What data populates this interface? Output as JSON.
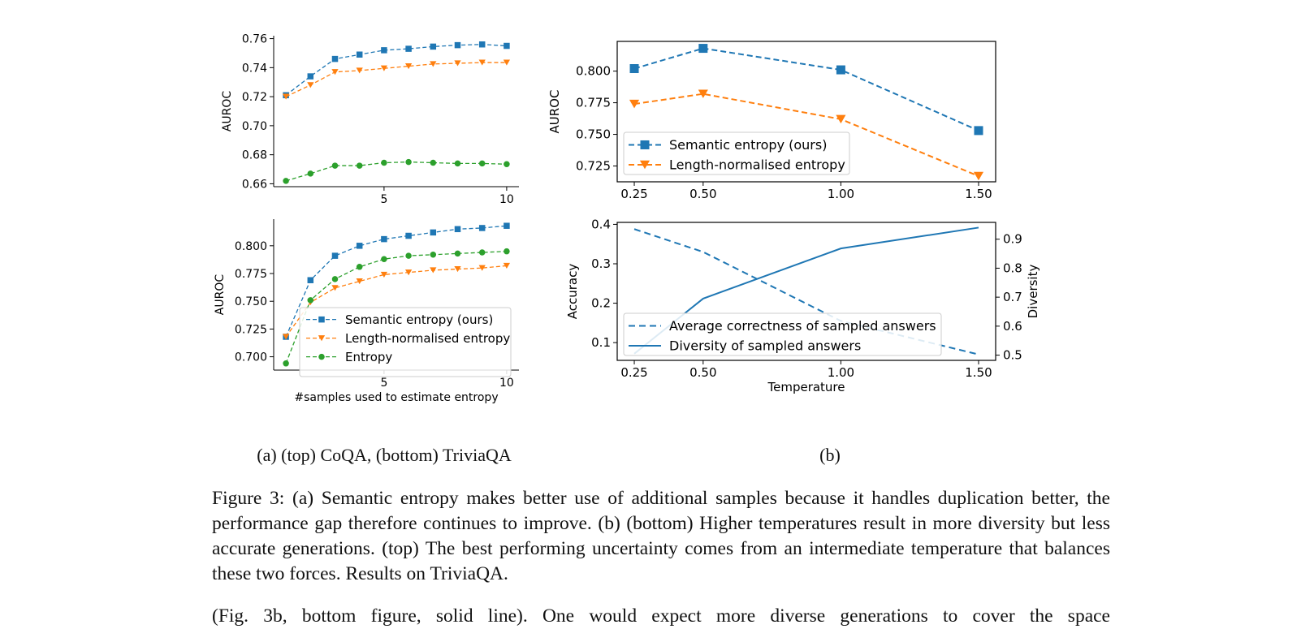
{
  "colors": {
    "blue": "#1f77b4",
    "orange": "#ff7f0e",
    "green": "#2ca02c"
  },
  "sublabels": {
    "a": "(a) (top) CoQA, (bottom) TriviaQA",
    "b": "(b)"
  },
  "caption": "Figure 3: (a) Semantic entropy makes better use of additional samples because it handles duplication better, the performance gap therefore continues to improve. (b) (bottom) Higher temperatures result in more diversity but less accurate generations. (top) The best performing uncertainty comes from an intermediate temperature that balances these two forces. Results on TriviaQA.",
  "body_text": "(Fig. 3b, bottom figure, solid line). One would expect more diverse generations to cover the space",
  "chart_data": [
    {
      "id": "a-top",
      "type": "line",
      "title": "",
      "xlabel": "",
      "ylabel": "AUROC",
      "xlim": [
        0.5,
        10.5
      ],
      "ylim": [
        0.658,
        0.762
      ],
      "xticks": [
        5,
        10
      ],
      "xtick_labels": [
        "5",
        "10"
      ],
      "yticks": [
        0.66,
        0.68,
        0.7,
        0.72,
        0.74,
        0.76
      ],
      "ytick_labels": [
        "0.66",
        "0.68",
        "0.70",
        "0.72",
        "0.74",
        "0.76"
      ],
      "grid": false,
      "legend": null,
      "x": [
        1,
        2,
        3,
        4,
        5,
        6,
        7,
        8,
        9,
        10
      ],
      "series": [
        {
          "name": "Semantic entropy (ours)",
          "color": "#1f77b4",
          "marker": "square",
          "dash": "dashed",
          "values": [
            0.721,
            0.734,
            0.746,
            0.749,
            0.752,
            0.753,
            0.7545,
            0.7555,
            0.756,
            0.755
          ]
        },
        {
          "name": "Length-normalised entropy",
          "color": "#ff7f0e",
          "marker": "triangle-down",
          "dash": "dashed",
          "values": [
            0.72,
            0.728,
            0.737,
            0.738,
            0.7395,
            0.741,
            0.7425,
            0.743,
            0.7435,
            0.7435
          ]
        },
        {
          "name": "Entropy",
          "color": "#2ca02c",
          "marker": "circle",
          "dash": "dashed",
          "values": [
            0.662,
            0.667,
            0.6725,
            0.6725,
            0.6745,
            0.675,
            0.6745,
            0.674,
            0.674,
            0.6735
          ]
        }
      ]
    },
    {
      "id": "a-bottom",
      "type": "line",
      "title": "",
      "xlabel": "#samples used to estimate entropy",
      "ylabel": "AUROC",
      "xlim": [
        0.5,
        10.5
      ],
      "ylim": [
        0.688,
        0.824
      ],
      "xticks": [
        5,
        10
      ],
      "xtick_labels": [
        "5",
        "10"
      ],
      "yticks": [
        0.7,
        0.725,
        0.75,
        0.775,
        0.8
      ],
      "ytick_labels": [
        "0.700",
        "0.725",
        "0.750",
        "0.775",
        "0.800"
      ],
      "grid": false,
      "legend": "lower-right",
      "x": [
        1,
        2,
        3,
        4,
        5,
        6,
        7,
        8,
        9,
        10
      ],
      "series": [
        {
          "name": "Semantic entropy (ours)",
          "color": "#1f77b4",
          "marker": "square",
          "dash": "dashed",
          "values": [
            0.718,
            0.769,
            0.791,
            0.8,
            0.806,
            0.809,
            0.812,
            0.815,
            0.816,
            0.818
          ]
        },
        {
          "name": "Length-normalised entropy",
          "color": "#ff7f0e",
          "marker": "triangle-down",
          "dash": "dashed",
          "values": [
            0.718,
            0.749,
            0.762,
            0.768,
            0.774,
            0.776,
            0.778,
            0.779,
            0.78,
            0.782
          ]
        },
        {
          "name": "Entropy",
          "color": "#2ca02c",
          "marker": "circle",
          "dash": "dashed",
          "values": [
            0.694,
            0.751,
            0.77,
            0.781,
            0.788,
            0.791,
            0.792,
            0.793,
            0.794,
            0.795
          ]
        }
      ]
    },
    {
      "id": "b-top",
      "type": "line",
      "title": "",
      "xlabel": "",
      "ylabel": "AUROC",
      "xlim": [
        0.188,
        1.562
      ],
      "ylim": [
        0.7125,
        0.8235
      ],
      "xticks": [
        0.25,
        0.5,
        1.0,
        1.5
      ],
      "xtick_labels": [
        "0.25",
        "0.50",
        "1.00",
        "1.50"
      ],
      "yticks": [
        0.725,
        0.75,
        0.775,
        0.8
      ],
      "ytick_labels": [
        "0.725",
        "0.750",
        "0.775",
        "0.800"
      ],
      "grid": false,
      "legend": "lower-left",
      "x": [
        0.25,
        0.5,
        1.0,
        1.5
      ],
      "series": [
        {
          "name": "Semantic entropy (ours)",
          "color": "#1f77b4",
          "marker": "square",
          "dash": "dashed",
          "values": [
            0.802,
            0.818,
            0.801,
            0.753
          ]
        },
        {
          "name": "Length-normalised entropy",
          "color": "#ff7f0e",
          "marker": "triangle-down",
          "dash": "dashed",
          "values": [
            0.774,
            0.782,
            0.762,
            0.717
          ]
        }
      ]
    },
    {
      "id": "b-bottom",
      "type": "line",
      "title": "",
      "xlabel": "Temperature",
      "ylabel": "Accuracy",
      "y2label": "Diversity",
      "xlim": [
        0.188,
        1.562
      ],
      "ylim": [
        0.055,
        0.405
      ],
      "y2lim": [
        0.482,
        0.958
      ],
      "xticks": [
        0.25,
        0.5,
        1.0,
        1.5
      ],
      "xtick_labels": [
        "0.25",
        "0.50",
        "1.00",
        "1.50"
      ],
      "yticks": [
        0.1,
        0.2,
        0.3,
        0.4
      ],
      "ytick_labels": [
        "0.1",
        "0.2",
        "0.3",
        "0.4"
      ],
      "y2ticks": [
        0.5,
        0.6,
        0.7,
        0.8,
        0.9
      ],
      "y2tick_labels": [
        "0.5",
        "0.6",
        "0.7",
        "0.8",
        "0.9"
      ],
      "grid": false,
      "legend": "lower-left",
      "x": [
        0.25,
        0.5,
        1.0,
        1.5
      ],
      "series": [
        {
          "name": "Average correctness of sampled answers",
          "color": "#1f77b4",
          "marker": "none",
          "dash": "dashed",
          "axis": "left",
          "values": [
            0.388,
            0.33,
            0.155,
            0.07
          ]
        },
        {
          "name": "Diversity of sampled answers",
          "color": "#1f77b4",
          "marker": "none",
          "dash": "solid",
          "axis": "right",
          "values": [
            0.505,
            0.695,
            0.868,
            0.94
          ]
        }
      ]
    }
  ]
}
